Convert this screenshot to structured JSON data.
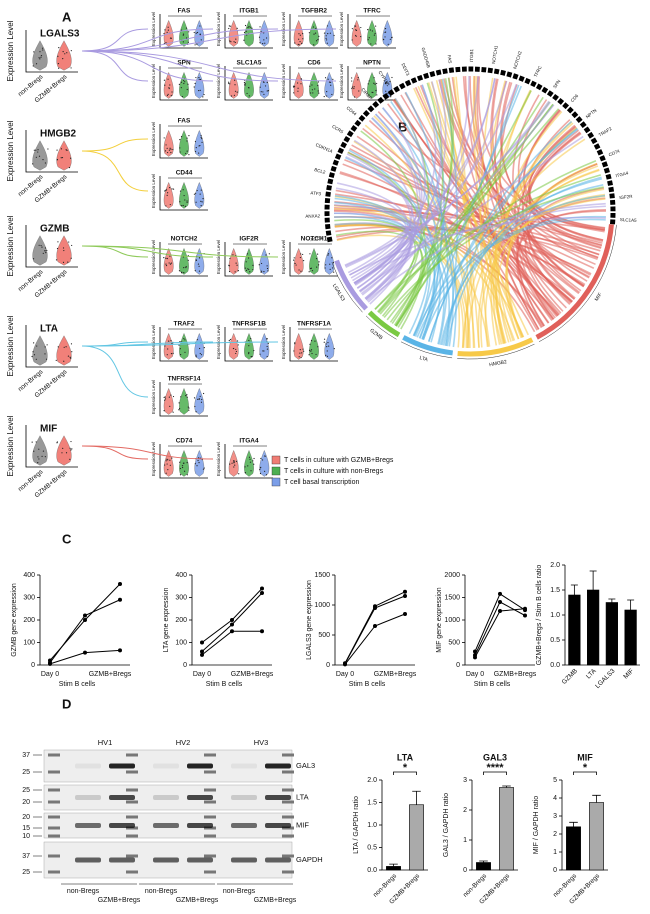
{
  "figure": {
    "panel_labels": [
      "A",
      "B",
      "C",
      "D"
    ],
    "panel_a": {
      "y_label": "Expression Level",
      "groups": [
        "non-Bregs",
        "GZMB+Bregs"
      ],
      "ligands": [
        {
          "name": "LGALS3",
          "color": "#a99be0",
          "targets": [
            "FAS",
            "ITGB1",
            "TGFBR2",
            "TFRC",
            "SPN",
            "SLC1A5",
            "CD6",
            "NPTN"
          ]
        },
        {
          "name": "HMGB2",
          "color": "#f3cf3c",
          "targets": [
            "FAS",
            "CD44"
          ]
        },
        {
          "name": "GZMB",
          "color": "#8fca5a",
          "targets": [
            "NOTCH2",
            "IGF2R",
            "NOTCH1"
          ]
        },
        {
          "name": "LTA",
          "color": "#62c6e3",
          "targets": [
            "TRAF2",
            "TNFRSF1B",
            "TNFRSF1A",
            "TNFRSF14"
          ]
        },
        {
          "name": "MIF",
          "color": "#e36a63",
          "targets": [
            "CD74",
            "ITGA4"
          ]
        }
      ],
      "legend": [
        {
          "name": "T cells in culture with GZMB+Bregs",
          "color": "#f07c74"
        },
        {
          "name": "T cells in culture with non-Bregs",
          "color": "#4caf50"
        },
        {
          "name": "T cell basal transcription",
          "color": "#7b9ee8"
        }
      ]
    },
    "panel_b": {
      "ligands": [
        {
          "name": "MIF",
          "color": "#e0605a"
        },
        {
          "name": "HMGB2",
          "color": "#f7c948"
        },
        {
          "name": "LTA",
          "color": "#5ab4e6"
        },
        {
          "name": "GZMB",
          "color": "#7ac943"
        },
        {
          "name": "LGALS3",
          "color": "#a99be0"
        }
      ],
      "targets": [
        "ACTB",
        "ANXA2",
        "ATF3",
        "BCL2",
        "CDKN1A",
        "CCR5",
        "CD44",
        "CIRBP",
        "CYP1B1",
        "DDIT3",
        "GADD45B",
        "FAS",
        "ITGB1",
        "NOTCH1",
        "NOTCH2",
        "TFRC",
        "SPN",
        "CD6",
        "NPTN",
        "TRAF2",
        "CD74",
        "ITGA4",
        "IGF2R",
        "SLC1A5"
      ]
    },
    "panel_d_blot": {
      "donors": [
        "HV1",
        "HV2",
        "HV3"
      ],
      "groups": [
        "non-Bregs",
        "GZMB+Bregs"
      ],
      "blots": [
        {
          "name": "GAL3",
          "markers": [
            37,
            25
          ]
        },
        {
          "name": "LTA",
          "markers": [
            25,
            20
          ]
        },
        {
          "name": "MIF",
          "markers": [
            20,
            15,
            10
          ]
        },
        {
          "name": "GAPDH",
          "markers": [
            37,
            25
          ]
        }
      ]
    }
  },
  "chart_data": [
    {
      "type": "line",
      "y_label": "GZMB gene expression",
      "x_label": "Stim B cells",
      "categories": [
        "Day 0",
        null,
        "GZMB+Bregs"
      ],
      "series": [
        {
          "color": "#000000",
          "values": [
            20,
            200,
            360
          ]
        },
        {
          "color": "#000000",
          "values": [
            10,
            220,
            290
          ]
        },
        {
          "color": "#000000",
          "values": [
            5,
            55,
            65
          ]
        }
      ],
      "ylim": [
        0,
        400
      ],
      "yticks": [
        0,
        100,
        200,
        300,
        400
      ]
    },
    {
      "type": "line",
      "y_label": "LTA gene expression",
      "x_label": "Stim B cells",
      "categories": [
        "Day 0",
        null,
        "GZMB+Bregs"
      ],
      "series": [
        {
          "color": "#000000",
          "values": [
            100,
            200,
            340
          ]
        },
        {
          "color": "#000000",
          "values": [
            60,
            180,
            320
          ]
        },
        {
          "color": "#000000",
          "values": [
            45,
            150,
            150
          ]
        }
      ],
      "ylim": [
        0,
        400
      ],
      "yticks": [
        0,
        100,
        200,
        300,
        400
      ]
    },
    {
      "type": "line",
      "y_label": "LGALS3 gene expression",
      "x_label": "Stim B cells",
      "categories": [
        "Day 0",
        null,
        "GZMB+Bregs"
      ],
      "series": [
        {
          "color": "#000000",
          "values": [
            30,
            980,
            1220
          ]
        },
        {
          "color": "#000000",
          "values": [
            20,
            950,
            1150
          ]
        },
        {
          "color": "#000000",
          "values": [
            10,
            650,
            850
          ]
        }
      ],
      "ylim": [
        0,
        1500
      ],
      "yticks": [
        0,
        500,
        1000,
        1500
      ]
    },
    {
      "type": "line",
      "y_label": "MIF gene expression",
      "x_label": "Stim B cells",
      "categories": [
        "Day 0",
        null,
        "GZMB+Bregs"
      ],
      "series": [
        {
          "color": "#000000",
          "values": [
            300,
            1580,
            1220
          ]
        },
        {
          "color": "#000000",
          "values": [
            220,
            1400,
            1100
          ]
        },
        {
          "color": "#000000",
          "values": [
            170,
            1200,
            1250
          ]
        }
      ],
      "ylim": [
        0,
        2000
      ],
      "yticks": [
        0,
        500,
        1000,
        1500,
        2000
      ]
    },
    {
      "type": "bar",
      "y_label": "GZMB+Bregs / Stim B cells ratio",
      "categories": [
        "GZMB",
        "LTA",
        "LGALS3",
        "MIF"
      ],
      "values": [
        1.4,
        1.5,
        1.25,
        1.1
      ],
      "errors": [
        0.2,
        0.38,
        0.07,
        0.2
      ],
      "color": "#000000",
      "ylim": [
        0,
        2
      ],
      "yticks": [
        {
          "value": 0,
          "label": "0.0"
        },
        {
          "value": 0.5,
          "label": "0.5"
        },
        {
          "value": 1,
          "label": "1.0"
        },
        {
          "value": 1.5,
          "label": "1.5"
        },
        {
          "value": 2,
          "label": "2.0"
        }
      ]
    },
    {
      "type": "bar",
      "title": "LTA",
      "y_label": "LTA / GAPDH ratio",
      "categories": [
        "non-Bregs",
        "GZMB+Bregs"
      ],
      "values": [
        0.08,
        1.45
      ],
      "errors": [
        0.05,
        0.3
      ],
      "colors": [
        "#000000",
        "#aaaaaa"
      ],
      "significance": "*",
      "ylim": [
        0,
        2
      ],
      "yticks": [
        {
          "value": 0,
          "label": "0.0"
        },
        {
          "value": 0.5,
          "label": "0.5"
        },
        {
          "value": 1,
          "label": "1.0"
        },
        {
          "value": 1.5,
          "label": "1.5"
        },
        {
          "value": 2,
          "label": "2.0"
        }
      ]
    },
    {
      "type": "bar",
      "title": "GAL3",
      "y_label": "GAL3 / GAPDH ratio",
      "categories": [
        "non-Bregs",
        "GZMB+Bregs"
      ],
      "values": [
        0.25,
        2.75
      ],
      "errors": [
        0.05,
        0.05
      ],
      "colors": [
        "#000000",
        "#aaaaaa"
      ],
      "significance": "****",
      "ylim": [
        0,
        3
      ],
      "yticks": [
        0,
        1,
        2,
        3
      ]
    },
    {
      "type": "bar",
      "title": "MIF",
      "y_label": "MIF / GAPDH ratio",
      "categories": [
        "non-Bregs",
        "GZMB+Bregs"
      ],
      "values": [
        2.4,
        3.75
      ],
      "errors": [
        0.25,
        0.4
      ],
      "colors": [
        "#000000",
        "#aaaaaa"
      ],
      "significance": "*",
      "ylim": [
        0,
        5
      ],
      "yticks": [
        0,
        1,
        2,
        3,
        4,
        5
      ]
    }
  ]
}
